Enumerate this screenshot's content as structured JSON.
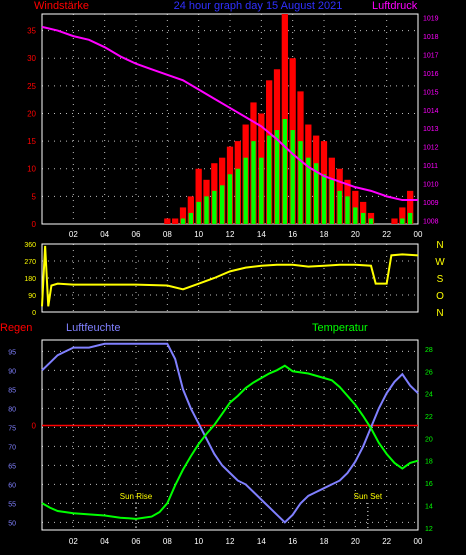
{
  "header": {
    "left_label": "Windstärke",
    "center_label": "24 hour graph day 15 August 2021",
    "right_label": "Luftdruck"
  },
  "colors": {
    "wind_gust": "#ff0000",
    "wind_avg": "#00ff00",
    "pressure": "#ff00ff",
    "direction": "#ffff00",
    "humidity": "#8080ff",
    "temperature": "#00ff00",
    "rain": "#ff0000",
    "frame": "#ffffff",
    "grid": "#ffffff"
  },
  "chart_data": [
    {
      "type": "bar",
      "panel": "wind_pressure",
      "x_unit": "hour",
      "x_tick_labels": [
        "02",
        "04",
        "06",
        "08",
        "10",
        "12",
        "14",
        "16",
        "18",
        "20",
        "22",
        "00"
      ],
      "y_left_label": "Windstärke",
      "ylim_left": [
        0,
        38
      ],
      "y_left_ticks": [
        0,
        5,
        10,
        15,
        20,
        25,
        30,
        35
      ],
      "y_right_label": "Luftdruck",
      "ylim_right": [
        1007.8,
        1019.2
      ],
      "y_right_ticks": [
        1008,
        1009,
        1010,
        1011,
        1012,
        1013,
        1014,
        1015,
        1016,
        1017,
        1018,
        1019
      ],
      "series": [
        {
          "name": "Windstärke",
          "kind": "bar",
          "x": [
            8.0,
            8.5,
            9.0,
            9.5,
            10.0,
            10.5,
            11.0,
            11.5,
            12.0,
            12.5,
            13.0,
            13.5,
            14.0,
            14.5,
            15.0,
            15.5,
            16.0,
            16.5,
            17.0,
            17.5,
            18.0,
            18.5,
            19.0,
            19.5,
            20.0,
            20.5,
            21.0,
            21.5,
            22.0,
            22.5,
            23.0,
            23.5
          ],
          "gust": [
            1,
            1,
            3,
            5,
            10,
            8,
            11,
            12,
            14,
            15,
            18,
            22,
            20,
            26,
            28,
            38,
            30,
            24,
            18,
            16,
            15,
            12,
            10,
            8,
            6,
            4,
            2,
            0,
            0,
            1,
            3,
            6
          ],
          "avg": [
            0,
            0,
            1,
            2,
            4,
            5,
            6,
            7,
            9,
            10,
            12,
            15,
            12,
            16,
            17,
            19,
            17,
            15,
            12,
            11,
            9,
            8,
            6,
            5,
            3,
            2,
            1,
            0,
            0,
            0,
            1,
            2
          ]
        },
        {
          "name": "Luftdruck",
          "kind": "line",
          "x": [
            0,
            1,
            2,
            3,
            4,
            5,
            6,
            7,
            8,
            9,
            10,
            11,
            12,
            13,
            14,
            15,
            16,
            17,
            18,
            19,
            20,
            21,
            22,
            23,
            24
          ],
          "y": [
            1018.5,
            1018.3,
            1018.0,
            1017.8,
            1017.4,
            1016.9,
            1016.5,
            1016.2,
            1015.9,
            1015.6,
            1015.1,
            1014.6,
            1014.1,
            1013.6,
            1013.1,
            1012.4,
            1011.6,
            1010.9,
            1010.4,
            1010.1,
            1009.8,
            1009.6,
            1009.3,
            1009.1,
            1009.1
          ]
        }
      ]
    },
    {
      "type": "line",
      "panel": "wind_direction",
      "x_unit": "hour",
      "ylim": [
        0,
        360
      ],
      "y_ticks": [
        0,
        90,
        180,
        270,
        360
      ],
      "compass_labels": [
        "N",
        "W",
        "S",
        "O",
        "N"
      ],
      "series": [
        {
          "name": "direction",
          "x": [
            0,
            0.2,
            0.4,
            0.6,
            1,
            2,
            4,
            6,
            8,
            9,
            10,
            11,
            12,
            13,
            14,
            15,
            16,
            17,
            18,
            19,
            20,
            21,
            21.3,
            22,
            22.3,
            23,
            24
          ],
          "y": [
            30,
            350,
            30,
            140,
            150,
            145,
            145,
            145,
            140,
            120,
            150,
            180,
            215,
            235,
            245,
            250,
            250,
            240,
            245,
            250,
            250,
            245,
            150,
            150,
            300,
            305,
            300
          ]
        }
      ]
    },
    {
      "type": "line",
      "panel": "humidity_temperature",
      "x_unit": "hour",
      "y_left_label": "Luftfeuchte",
      "ylim_left": [
        48,
        98
      ],
      "y_left_ticks": [
        50,
        55,
        60,
        65,
        70,
        75,
        80,
        85,
        90,
        95
      ],
      "y_right_label": "Temperatur",
      "ylim_right": [
        11.8,
        28.8
      ],
      "y_right_ticks": [
        12,
        14,
        16,
        18,
        20,
        22,
        24,
        26,
        28
      ],
      "rain_label": "Regen",
      "rain_tick": "0",
      "rain_level": 75.5,
      "annotations": [
        {
          "text": "Sun Rise",
          "x": 6.0
        },
        {
          "text": "Sun Set",
          "x": 20.8
        }
      ],
      "series": [
        {
          "name": "Luftfeuchte",
          "x": [
            0,
            0.5,
            1,
            1.5,
            2,
            3,
            4,
            5,
            6,
            7,
            7.5,
            8,
            8.5,
            9,
            9.5,
            10,
            10.5,
            11,
            11.5,
            12,
            12.5,
            13,
            13.5,
            14,
            14.5,
            15,
            15.5,
            16,
            16.5,
            17,
            17.5,
            18,
            18.5,
            19,
            19.5,
            20,
            20.5,
            21,
            21.5,
            22,
            22.5,
            23,
            23.5,
            24
          ],
          "y": [
            90,
            92,
            94,
            95,
            96,
            96,
            97,
            97,
            97,
            97,
            97,
            97,
            93,
            85,
            80,
            76,
            72,
            68,
            65,
            63,
            61,
            60,
            58,
            56,
            54,
            52,
            50,
            52,
            55,
            57,
            58,
            59,
            60,
            61,
            63,
            66,
            70,
            75,
            80,
            84,
            87,
            89,
            86,
            84
          ]
        },
        {
          "name": "Temperatur",
          "x": [
            0,
            0.5,
            1,
            1.5,
            2,
            3,
            4,
            5,
            6,
            7,
            7.5,
            8,
            8.5,
            9,
            9.5,
            10,
            10.5,
            11,
            11.5,
            12,
            12.5,
            13,
            13.5,
            14,
            14.5,
            15,
            15.5,
            16,
            16.5,
            17,
            17.5,
            18,
            18.5,
            19,
            19.5,
            20,
            20.5,
            21,
            21.5,
            22,
            22.5,
            23,
            23.5,
            24
          ],
          "y": [
            14.2,
            13.8,
            13.5,
            13.4,
            13.3,
            13.2,
            13.1,
            12.9,
            12.8,
            13.0,
            13.4,
            14.2,
            15.8,
            17.2,
            18.4,
            19.5,
            20.4,
            21.2,
            22.2,
            23.2,
            23.8,
            24.5,
            25.0,
            25.4,
            25.8,
            26.1,
            26.5,
            26.0,
            25.9,
            25.8,
            25.6,
            25.4,
            25.2,
            24.6,
            23.8,
            23.0,
            22.0,
            20.9,
            19.6,
            18.6,
            17.8,
            17.3,
            17.8,
            18.0
          ]
        }
      ]
    }
  ]
}
